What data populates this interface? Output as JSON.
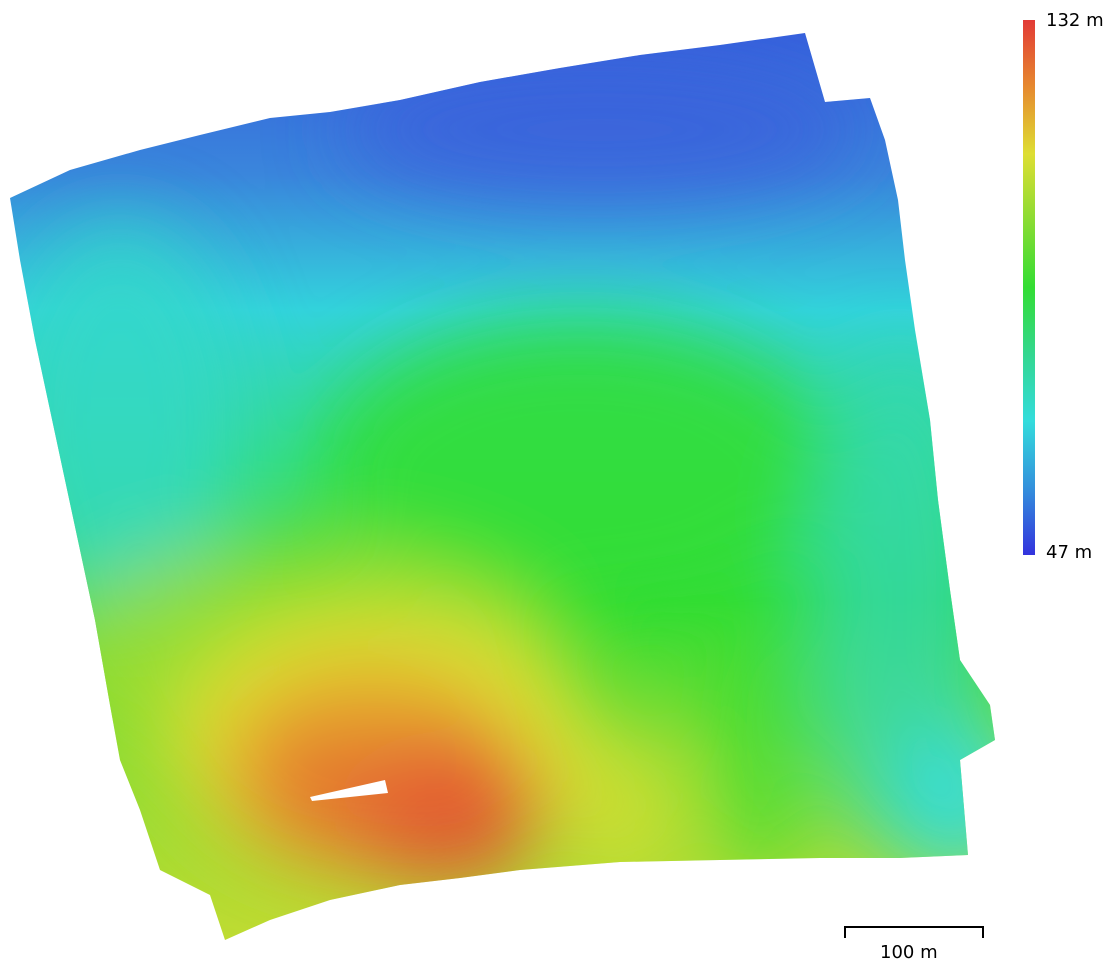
{
  "legend": {
    "max_label": "132 m",
    "min_label": "47 m",
    "max_value": 132,
    "min_value": 47,
    "unit": "m",
    "colors": [
      "#e23a36",
      "#e6892f",
      "#dede33",
      "#8adc33",
      "#33dd33",
      "#33d790",
      "#33dcdc",
      "#3390dc",
      "#3333dd"
    ]
  },
  "scale_bar": {
    "label": "100 m",
    "length_m": 100
  }
}
